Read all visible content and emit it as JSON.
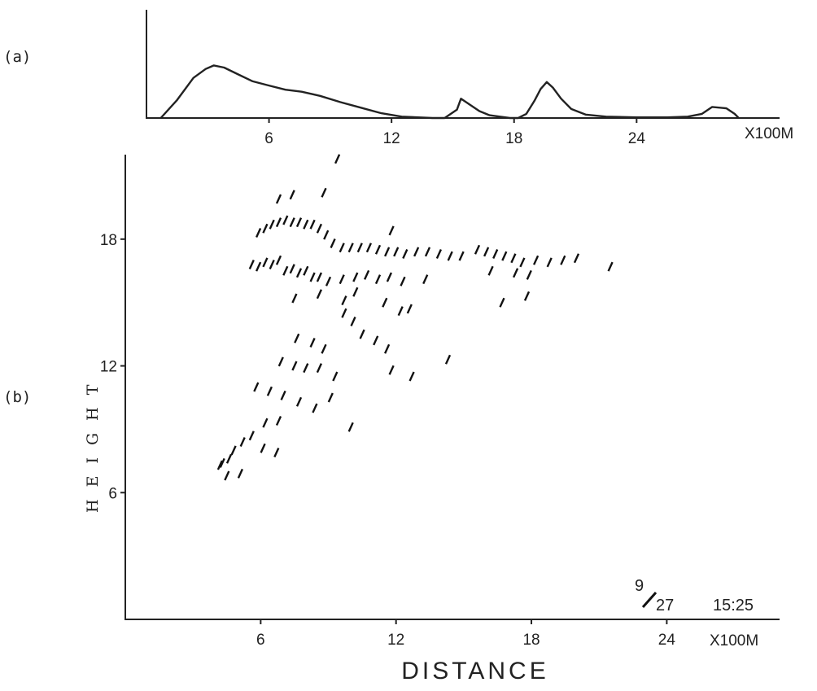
{
  "chart_data": [
    {
      "panel": "(a)",
      "type": "line",
      "x_unit_label": "X100M",
      "xlim": [
        0,
        31
      ],
      "ylim": [
        0,
        1
      ],
      "x_ticks": [
        6,
        12,
        18,
        24
      ],
      "grid": false,
      "x": [
        0.7,
        1.5,
        2.3,
        2.9,
        3.3,
        3.8,
        4.5,
        5.2,
        6,
        6.8,
        7.6,
        8.5,
        9.5,
        10.5,
        11.5,
        12.5,
        13.3,
        14,
        14.6,
        15.2,
        15.4,
        15.8,
        16.3,
        16.8,
        17.3,
        17.8,
        18.2,
        18.6,
        19,
        19.3,
        19.6,
        19.9,
        20.3,
        20.8,
        21.5,
        22.5,
        24,
        25.5,
        26.5,
        27.2,
        27.7,
        28.4,
        28.8,
        29
      ],
      "y": [
        0,
        0.26,
        0.58,
        0.71,
        0.76,
        0.73,
        0.63,
        0.53,
        0.47,
        0.41,
        0.38,
        0.32,
        0.23,
        0.15,
        0.07,
        0.02,
        0.01,
        0.0,
        0.0,
        0.12,
        0.28,
        0.2,
        0.1,
        0.04,
        0.02,
        0.0,
        0.0,
        0.06,
        0.25,
        0.42,
        0.52,
        0.44,
        0.28,
        0.13,
        0.05,
        0.02,
        0.01,
        0.01,
        0.02,
        0.06,
        0.16,
        0.14,
        0.06,
        0.0
      ]
    },
    {
      "panel": "(b)",
      "type": "scatter",
      "title": "",
      "xlabel": "DISTANCE",
      "ylabel": "HEIGHT",
      "x_unit_label": "X100M",
      "xlim": [
        0,
        29
      ],
      "ylim": [
        0,
        22
      ],
      "x_ticks": [
        6,
        12,
        18,
        24
      ],
      "y_ticks": [
        6,
        12,
        18
      ],
      "grid": false,
      "marker": "short oblique dash",
      "date_stamp": {
        "num": "9",
        "den": "27",
        "time": "15:25"
      },
      "points": [
        [
          5.6,
          16.8
        ],
        [
          5.9,
          16.7
        ],
        [
          6.2,
          16.9
        ],
        [
          6.5,
          16.8
        ],
        [
          6.8,
          17.0
        ],
        [
          7.1,
          16.5
        ],
        [
          7.4,
          16.6
        ],
        [
          7.7,
          16.4
        ],
        [
          8.0,
          16.5
        ],
        [
          8.3,
          16.2
        ],
        [
          8.6,
          16.2
        ],
        [
          9.0,
          16.0
        ],
        [
          5.9,
          18.3
        ],
        [
          6.2,
          18.5
        ],
        [
          6.5,
          18.7
        ],
        [
          6.8,
          18.8
        ],
        [
          7.1,
          18.9
        ],
        [
          7.4,
          18.8
        ],
        [
          7.7,
          18.8
        ],
        [
          8.0,
          18.7
        ],
        [
          8.3,
          18.7
        ],
        [
          8.6,
          18.5
        ],
        [
          8.9,
          18.2
        ],
        [
          9.2,
          17.8
        ],
        [
          9.6,
          17.6
        ],
        [
          10.0,
          17.6
        ],
        [
          10.4,
          17.6
        ],
        [
          10.8,
          17.6
        ],
        [
          11.2,
          17.5
        ],
        [
          11.6,
          17.4
        ],
        [
          12.0,
          17.4
        ],
        [
          12.4,
          17.3
        ],
        [
          12.9,
          17.4
        ],
        [
          13.4,
          17.4
        ],
        [
          13.9,
          17.3
        ],
        [
          14.4,
          17.2
        ],
        [
          14.9,
          17.2
        ],
        [
          15.6,
          17.5
        ],
        [
          16.0,
          17.4
        ],
        [
          16.4,
          17.3
        ],
        [
          16.8,
          17.2
        ],
        [
          17.2,
          17.1
        ],
        [
          17.6,
          16.9
        ],
        [
          18.2,
          17.0
        ],
        [
          18.8,
          16.9
        ],
        [
          19.4,
          17.0
        ],
        [
          20.0,
          17.1
        ],
        [
          21.5,
          16.7
        ],
        [
          9.6,
          16.1
        ],
        [
          10.2,
          16.2
        ],
        [
          10.7,
          16.3
        ],
        [
          11.2,
          16.1
        ],
        [
          11.7,
          16.2
        ],
        [
          12.3,
          16.0
        ],
        [
          13.3,
          16.1
        ],
        [
          16.2,
          16.5
        ],
        [
          17.3,
          16.4
        ],
        [
          17.9,
          16.3
        ],
        [
          6.8,
          19.9
        ],
        [
          7.4,
          20.1
        ],
        [
          8.8,
          20.2
        ],
        [
          9.4,
          21.8
        ],
        [
          11.8,
          18.4
        ],
        [
          7.5,
          15.2
        ],
        [
          8.6,
          15.4
        ],
        [
          9.7,
          15.1
        ],
        [
          10.2,
          15.5
        ],
        [
          11.5,
          15.0
        ],
        [
          12.2,
          14.6
        ],
        [
          12.6,
          14.7
        ],
        [
          16.7,
          15.0
        ],
        [
          17.8,
          15.3
        ],
        [
          9.7,
          14.5
        ],
        [
          10.1,
          14.1
        ],
        [
          10.5,
          13.5
        ],
        [
          11.1,
          13.2
        ],
        [
          11.6,
          12.8
        ],
        [
          7.6,
          13.3
        ],
        [
          8.3,
          13.1
        ],
        [
          8.8,
          12.8
        ],
        [
          6.9,
          12.2
        ],
        [
          7.5,
          12.0
        ],
        [
          8.0,
          11.9
        ],
        [
          8.6,
          11.9
        ],
        [
          9.3,
          11.5
        ],
        [
          11.8,
          11.8
        ],
        [
          12.7,
          11.5
        ],
        [
          14.3,
          12.3
        ],
        [
          5.8,
          11.0
        ],
        [
          6.4,
          10.8
        ],
        [
          7.0,
          10.6
        ],
        [
          7.7,
          10.3
        ],
        [
          9.1,
          10.5
        ],
        [
          8.4,
          10.0
        ],
        [
          6.8,
          9.4
        ],
        [
          6.2,
          9.3
        ],
        [
          10.0,
          9.1
        ],
        [
          5.6,
          8.7
        ],
        [
          5.2,
          8.4
        ],
        [
          6.1,
          8.1
        ],
        [
          6.7,
          7.9
        ],
        [
          4.8,
          8.0
        ],
        [
          4.6,
          7.6
        ],
        [
          4.3,
          7.4
        ],
        [
          4.2,
          7.3
        ],
        [
          4.5,
          6.8
        ],
        [
          5.1,
          6.9
        ]
      ]
    }
  ]
}
